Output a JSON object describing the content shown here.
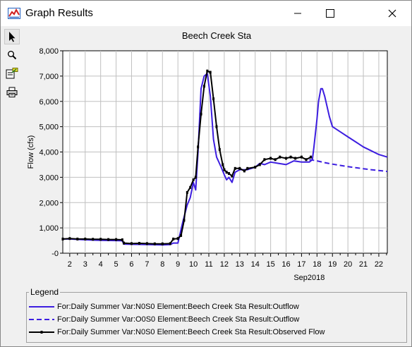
{
  "window": {
    "title": "Graph Results"
  },
  "toolbar": {
    "tools": [
      {
        "name": "pointer",
        "icon": "arrow-pointer-icon"
      },
      {
        "name": "zoom",
        "icon": "magnifier-icon"
      },
      {
        "name": "properties",
        "icon": "edit-properties-icon"
      },
      {
        "name": "print",
        "icon": "printer-icon"
      }
    ]
  },
  "legend": {
    "title": "Legend",
    "items": [
      {
        "label": "For:Daily Summer Var:N0S0 Element:Beech Creek Sta Result:Outflow",
        "color": "#3d1ee0",
        "style": "solid"
      },
      {
        "label": "For:Daily Summer Var:O0S0 Element:Beech Creek Sta Result:Outflow",
        "color": "#3d1ee0",
        "style": "dashed"
      },
      {
        "label": "For:Daily Summer Var:N0S0 Element:Beech Creek Sta Result:Observed Flow",
        "color": "#000000",
        "style": "solid-markers"
      }
    ]
  },
  "chart_data": {
    "type": "line",
    "title": "Beech Creek Sta",
    "ylabel": "Flow (cfs)",
    "xlabel": "Sep2018",
    "x_ticks": [
      "2",
      "3",
      "4",
      "5",
      "6",
      "7",
      "8",
      "9",
      "10",
      "11",
      "12",
      "13",
      "14",
      "15",
      "16",
      "17",
      "18",
      "19",
      "20",
      "21",
      "22"
    ],
    "y_ticks": [
      "-0",
      "1,000",
      "2,000",
      "3,000",
      "4,000",
      "5,000",
      "6,000",
      "7,000",
      "8,000"
    ],
    "xlim": [
      1.55,
      22.55
    ],
    "ylim": [
      0,
      8000
    ],
    "grid": true,
    "series": [
      {
        "name": "For:Daily Summer Var:N0S0 Element:Beech Creek Sta Result:Outflow",
        "color": "#3d1ee0",
        "dash": "none",
        "width": 2,
        "points": [
          [
            1.55,
            560
          ],
          [
            2,
            560
          ],
          [
            3,
            530
          ],
          [
            4,
            510
          ],
          [
            5,
            500
          ],
          [
            5.4,
            490
          ],
          [
            5.5,
            360
          ],
          [
            6,
            350
          ],
          [
            7,
            340
          ],
          [
            8,
            330
          ],
          [
            8.5,
            340
          ],
          [
            8.7,
            400
          ],
          [
            9,
            400
          ],
          [
            9.3,
            1200
          ],
          [
            9.6,
            1900
          ],
          [
            9.8,
            2200
          ],
          [
            10,
            2800
          ],
          [
            10.15,
            2500
          ],
          [
            10.3,
            4000
          ],
          [
            10.5,
            6500
          ],
          [
            10.7,
            7000
          ],
          [
            10.9,
            7100
          ],
          [
            11.1,
            6200
          ],
          [
            11.3,
            4500
          ],
          [
            11.5,
            3800
          ],
          [
            11.8,
            3400
          ],
          [
            12,
            3100
          ],
          [
            12.15,
            2900
          ],
          [
            12.3,
            3000
          ],
          [
            12.5,
            2800
          ],
          [
            12.7,
            3200
          ],
          [
            13,
            3300
          ],
          [
            13.5,
            3300
          ],
          [
            14,
            3400
          ],
          [
            14.3,
            3550
          ],
          [
            14.6,
            3500
          ],
          [
            15,
            3600
          ],
          [
            15.5,
            3550
          ],
          [
            16,
            3500
          ],
          [
            16.5,
            3650
          ],
          [
            17,
            3600
          ],
          [
            17.5,
            3600
          ],
          [
            17.7,
            3700
          ],
          [
            17.8,
            4200
          ],
          [
            18,
            5300
          ],
          [
            18.1,
            6000
          ],
          [
            18.25,
            6500
          ],
          [
            18.35,
            6500
          ],
          [
            18.5,
            6200
          ],
          [
            18.8,
            5400
          ],
          [
            19,
            5000
          ],
          [
            19.5,
            4800
          ],
          [
            20,
            4600
          ],
          [
            20.5,
            4400
          ],
          [
            21,
            4200
          ],
          [
            21.5,
            4050
          ],
          [
            22,
            3900
          ],
          [
            22.55,
            3800
          ]
        ]
      },
      {
        "name": "For:Daily Summer Var:O0S0 Element:Beech Creek Sta Result:Outflow",
        "color": "#3d1ee0",
        "dash": "7,4",
        "width": 2,
        "points": [
          [
            17.5,
            3700
          ],
          [
            18,
            3650
          ],
          [
            18.5,
            3580
          ],
          [
            19,
            3520
          ],
          [
            19.5,
            3470
          ],
          [
            20,
            3420
          ],
          [
            20.5,
            3380
          ],
          [
            21,
            3340
          ],
          [
            21.5,
            3300
          ],
          [
            22,
            3270
          ],
          [
            22.55,
            3230
          ]
        ]
      },
      {
        "name": "For:Daily Summer Var:N0S0 Element:Beech Creek Sta Result:Observed Flow",
        "color": "#000000",
        "dash": "none",
        "width": 2,
        "markers": true,
        "points": [
          [
            1.55,
            560
          ],
          [
            2,
            580
          ],
          [
            2.5,
            560
          ],
          [
            3,
            560
          ],
          [
            3.5,
            550
          ],
          [
            4,
            550
          ],
          [
            4.5,
            540
          ],
          [
            5,
            540
          ],
          [
            5.4,
            530
          ],
          [
            5.5,
            400
          ],
          [
            6,
            380
          ],
          [
            6.5,
            390
          ],
          [
            7,
            380
          ],
          [
            7.5,
            370
          ],
          [
            8,
            370
          ],
          [
            8.5,
            380
          ],
          [
            8.7,
            560
          ],
          [
            9,
            580
          ],
          [
            9.2,
            700
          ],
          [
            9.4,
            1300
          ],
          [
            9.6,
            2400
          ],
          [
            9.8,
            2600
          ],
          [
            10,
            2900
          ],
          [
            10.15,
            3000
          ],
          [
            10.3,
            4200
          ],
          [
            10.5,
            5500
          ],
          [
            10.7,
            6600
          ],
          [
            10.9,
            7200
          ],
          [
            11.1,
            7150
          ],
          [
            11.3,
            6100
          ],
          [
            11.5,
            5000
          ],
          [
            11.7,
            4100
          ],
          [
            11.9,
            3500
          ],
          [
            12,
            3300
          ],
          [
            12.15,
            3200
          ],
          [
            12.3,
            3150
          ],
          [
            12.5,
            3050
          ],
          [
            12.7,
            3350
          ],
          [
            13,
            3350
          ],
          [
            13.3,
            3250
          ],
          [
            13.5,
            3350
          ],
          [
            14,
            3400
          ],
          [
            14.3,
            3500
          ],
          [
            14.6,
            3700
          ],
          [
            15,
            3750
          ],
          [
            15.3,
            3700
          ],
          [
            15.6,
            3800
          ],
          [
            16,
            3750
          ],
          [
            16.3,
            3800
          ],
          [
            16.6,
            3750
          ],
          [
            17,
            3800
          ],
          [
            17.3,
            3700
          ],
          [
            17.6,
            3800
          ]
        ]
      }
    ]
  }
}
